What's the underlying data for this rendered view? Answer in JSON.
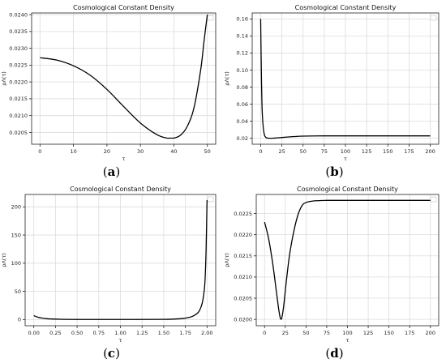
{
  "chart_data": [
    {
      "type": "line",
      "title": "Cosmological Constant Density",
      "xlabel": "τ",
      "ylabel": "ρΛ(τ)",
      "xlim": [
        -2.5,
        52.5
      ],
      "ylim": [
        0.02015,
        0.02405
      ],
      "xticks": [
        0,
        10,
        20,
        30,
        40,
        50
      ],
      "xtick_labels": [
        "0",
        "10",
        "20",
        "30",
        "40",
        "50"
      ],
      "yticks": [
        0.0205,
        0.021,
        0.0215,
        0.022,
        0.0225,
        0.023,
        0.0235,
        0.024
      ],
      "ytick_labels": [
        "0.0205",
        "0.0210",
        "0.0215",
        "0.0220",
        "0.0225",
        "0.0230",
        "0.0235",
        "0.0240"
      ],
      "grid": true,
      "series": [
        {
          "x": [
            0,
            5,
            10,
            15,
            20,
            25,
            30,
            35,
            38,
            40,
            42,
            44,
            46,
            48,
            49,
            50
          ],
          "y": [
            0.02272,
            0.02265,
            0.02248,
            0.0222,
            0.02178,
            0.02127,
            0.02078,
            0.02043,
            0.02033,
            0.02033,
            0.02042,
            0.02068,
            0.02123,
            0.02235,
            0.0232,
            0.024
          ]
        }
      ]
    },
    {
      "type": "line",
      "title": "Cosmological Constant Density",
      "xlabel": "τ",
      "ylabel": "ρΛ(τ)",
      "xlim": [
        -10,
        210
      ],
      "ylim": [
        0.013,
        0.167
      ],
      "xticks": [
        0,
        25,
        50,
        75,
        100,
        125,
        150,
        175,
        200
      ],
      "xtick_labels": [
        "0",
        "25",
        "50",
        "75",
        "100",
        "125",
        "150",
        "175",
        "200"
      ],
      "yticks": [
        0.02,
        0.04,
        0.06,
        0.08,
        0.1,
        0.12,
        0.14,
        0.16
      ],
      "ytick_labels": [
        "0.02",
        "0.04",
        "0.06",
        "0.08",
        "0.10",
        "0.12",
        "0.14",
        "0.16"
      ],
      "grid": true,
      "series": [
        {
          "x": [
            0,
            0.5,
            1,
            1.5,
            2,
            3,
            4,
            5,
            7,
            10,
            15,
            20,
            30,
            40,
            50,
            75,
            100,
            150,
            200
          ],
          "y": [
            0.16,
            0.118,
            0.085,
            0.062,
            0.047,
            0.033,
            0.026,
            0.0225,
            0.0205,
            0.02,
            0.0201,
            0.0205,
            0.0213,
            0.022,
            0.0225,
            0.0228,
            0.0228,
            0.0228,
            0.0228
          ]
        }
      ]
    },
    {
      "type": "line",
      "title": "Cosmological Constant Density",
      "xlabel": "τ",
      "ylabel": "ρΛ(τ)",
      "xlim": [
        -0.1,
        2.1
      ],
      "ylim": [
        -11,
        222
      ],
      "xticks": [
        0.0,
        0.25,
        0.5,
        0.75,
        1.0,
        1.25,
        1.5,
        1.75,
        2.0
      ],
      "xtick_labels": [
        "0.00",
        "0.25",
        "0.50",
        "0.75",
        "1.00",
        "1.25",
        "1.50",
        "1.75",
        "2.00"
      ],
      "yticks": [
        0,
        50,
        100,
        150,
        200
      ],
      "ytick_labels": [
        "0",
        "50",
        "100",
        "150",
        "200"
      ],
      "grid": true,
      "series": [
        {
          "x": [
            0,
            0.05,
            0.1,
            0.15,
            0.2,
            0.3,
            0.5,
            1.0,
            1.5,
            1.7,
            1.8,
            1.85,
            1.9,
            1.93,
            1.95,
            1.97,
            1.98,
            1.99,
            2.0
          ],
          "y": [
            7,
            4,
            2.5,
            1.5,
            1,
            0.5,
            0.2,
            0.1,
            0.3,
            1.5,
            4,
            7,
            13,
            22,
            33,
            55,
            80,
            130,
            212
          ]
        }
      ]
    },
    {
      "type": "line",
      "title": "Cosmological Constant Density",
      "xlabel": "τ",
      "ylabel": "ρΛ(τ)",
      "xlim": [
        -10,
        210
      ],
      "ylim": [
        0.01985,
        0.02295
      ],
      "xticks": [
        0,
        25,
        50,
        75,
        100,
        125,
        150,
        175,
        200
      ],
      "xtick_labels": [
        "0",
        "25",
        "50",
        "75",
        "100",
        "125",
        "150",
        "175",
        "200"
      ],
      "yticks": [
        0.02,
        0.0205,
        0.021,
        0.0215,
        0.022,
        0.0225
      ],
      "ytick_labels": [
        "0.0200",
        "0.0205",
        "0.0210",
        "0.0215",
        "0.0220",
        "0.0225"
      ],
      "grid": true,
      "series": [
        {
          "x": [
            0,
            5,
            10,
            14,
            17,
            19,
            20,
            21,
            23,
            26,
            30,
            35,
            40,
            45,
            50,
            60,
            75,
            100,
            150,
            200
          ],
          "y": [
            0.0223,
            0.0219,
            0.0213,
            0.0207,
            0.02025,
            0.02003,
            0.02,
            0.02005,
            0.0203,
            0.02085,
            0.0215,
            0.02205,
            0.02245,
            0.02268,
            0.02276,
            0.0228,
            0.02281,
            0.02281,
            0.02281,
            0.02281
          ]
        }
      ]
    }
  ],
  "captions": [
    {
      "open": "(",
      "letter": "a",
      "close": ")"
    },
    {
      "open": "(",
      "letter": "b",
      "close": ")"
    },
    {
      "open": "(",
      "letter": "c",
      "close": ")"
    },
    {
      "open": "(",
      "letter": "d",
      "close": ")"
    }
  ]
}
